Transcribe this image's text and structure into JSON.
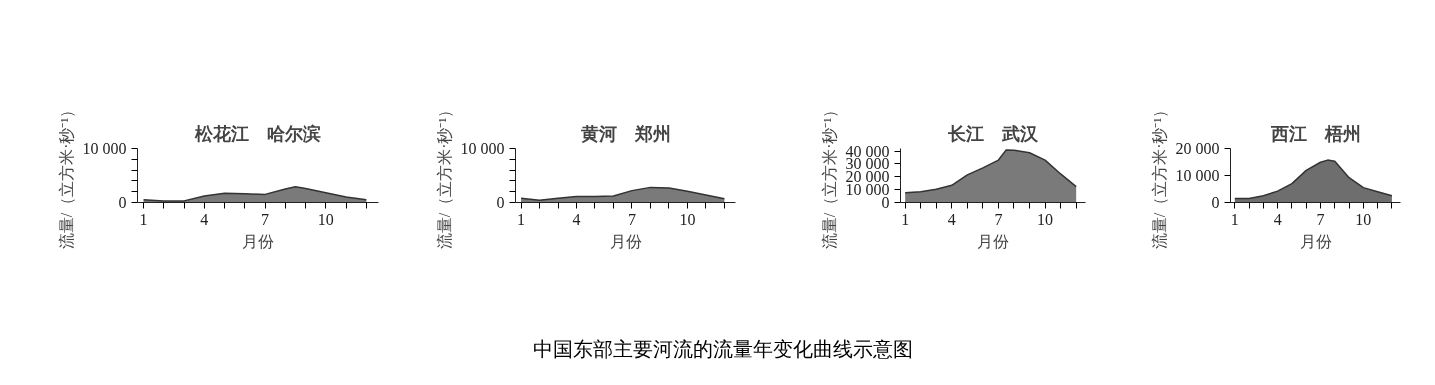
{
  "chart_data": [
    {
      "type": "area",
      "title": "松花江　哈尔滨",
      "xlabel": "月份",
      "ylabel": "流量/（立方米·秒⁻¹）",
      "color": "#7a7a7a",
      "x": [
        1,
        2,
        3,
        4,
        5,
        6,
        7,
        8,
        8.5,
        9,
        10,
        11,
        12
      ],
      "values": [
        500,
        300,
        300,
        1200,
        1700,
        1600,
        1500,
        2500,
        2900,
        2600,
        1800,
        1000,
        500
      ],
      "xlim": [
        0.7,
        12.6
      ],
      "ylim": [
        0,
        10000
      ],
      "xticks": [
        1,
        {
          "value": 2,
          "label": null
        },
        {
          "value": 3,
          "label": null
        },
        4,
        {
          "value": 5,
          "label": null
        },
        {
          "value": 6,
          "label": null
        },
        7,
        {
          "value": 8,
          "label": null
        },
        {
          "value": 9,
          "label": null
        },
        10,
        {
          "value": 11,
          "label": null
        },
        {
          "value": 12,
          "label": null
        }
      ],
      "yticks": [
        0,
        {
          "value": 2000,
          "label": null
        },
        {
          "value": 4000,
          "label": null
        },
        {
          "value": 6000,
          "label": null
        },
        {
          "value": 8000,
          "label": null
        },
        {
          "value": 10000,
          "label": "10 000"
        }
      ],
      "annotations": [
        "中国东部主要河流的流量年变化曲线示意图"
      ]
    },
    {
      "type": "area",
      "title": "黄河　郑州",
      "xlabel": "月份",
      "ylabel": "流量/（立方米·秒⁻¹）",
      "color": "#7a7a7a",
      "x": [
        1,
        2,
        3,
        4,
        5,
        6,
        7,
        8,
        9,
        10,
        11,
        12
      ],
      "values": [
        800,
        400,
        800,
        1100,
        1100,
        1200,
        2200,
        2800,
        2700,
        2100,
        1400,
        700
      ],
      "xlim": [
        0.7,
        12.6
      ],
      "ylim": [
        0,
        10000
      ],
      "xticks": [
        1,
        {
          "value": 2,
          "label": null
        },
        {
          "value": 3,
          "label": null
        },
        4,
        {
          "value": 5,
          "label": null
        },
        {
          "value": 6,
          "label": null
        },
        7,
        {
          "value": 8,
          "label": null
        },
        {
          "value": 9,
          "label": null
        },
        10,
        {
          "value": 11,
          "label": null
        },
        {
          "value": 12,
          "label": null
        }
      ],
      "yticks": [
        0,
        {
          "value": 2000,
          "label": null
        },
        {
          "value": 4000,
          "label": null
        },
        {
          "value": 6000,
          "label": null
        },
        {
          "value": 8000,
          "label": null
        },
        {
          "value": 10000,
          "label": "10 000"
        }
      ]
    },
    {
      "type": "area",
      "title": "长江　武汉",
      "xlabel": "月份",
      "ylabel": "流量/（立方米·秒⁻¹）",
      "color": "#7a7a7a",
      "x": [
        1,
        2,
        3,
        4,
        5,
        6,
        7,
        7.5,
        8,
        9,
        10,
        11,
        12
      ],
      "values": [
        7600,
        8300,
        10300,
        13400,
        21500,
        26900,
        33000,
        40900,
        40700,
        38700,
        33000,
        22200,
        12400
      ],
      "xlim": [
        0.7,
        12.6
      ],
      "ylim": [
        0,
        42000
      ],
      "xticks": [
        1,
        {
          "value": 2,
          "label": null
        },
        {
          "value": 3,
          "label": null
        },
        4,
        {
          "value": 5,
          "label": null
        },
        {
          "value": 6,
          "label": null
        },
        7,
        {
          "value": 8,
          "label": null
        },
        {
          "value": 9,
          "label": null
        },
        10,
        {
          "value": 11,
          "label": null
        },
        {
          "value": 12,
          "label": null
        }
      ],
      "yticks": [
        0,
        {
          "value": 10000,
          "label": "10 000"
        },
        {
          "value": 20000,
          "label": "20 000"
        },
        {
          "value": 30000,
          "label": "30 000"
        },
        {
          "value": 40000,
          "label": "40 000"
        }
      ]
    },
    {
      "type": "area",
      "title": "西江　梧州",
      "xlabel": "月份",
      "ylabel": "流量/（立方米·秒⁻¹）",
      "color": "#6e6e6e",
      "x": [
        1,
        2,
        3,
        4,
        5,
        6,
        7,
        7.5,
        8,
        9,
        10,
        11,
        12
      ],
      "values": [
        1500,
        1500,
        2500,
        4200,
        7000,
        11900,
        14900,
        15700,
        15300,
        9200,
        5500,
        4000,
        2500
      ],
      "xlim": [
        0.7,
        12.6
      ],
      "ylim": [
        0,
        20000
      ],
      "xticks": [
        1,
        {
          "value": 2,
          "label": null
        },
        {
          "value": 3,
          "label": null
        },
        4,
        {
          "value": 5,
          "label": null
        },
        {
          "value": 6,
          "label": null
        },
        7,
        {
          "value": 8,
          "label": null
        },
        {
          "value": 9,
          "label": null
        },
        10,
        {
          "value": 11,
          "label": null
        },
        {
          "value": 12,
          "label": null
        }
      ],
      "yticks": [
        0,
        {
          "value": 10000,
          "label": "10 000"
        },
        {
          "value": 20000,
          "label": "20 000"
        }
      ]
    }
  ]
}
